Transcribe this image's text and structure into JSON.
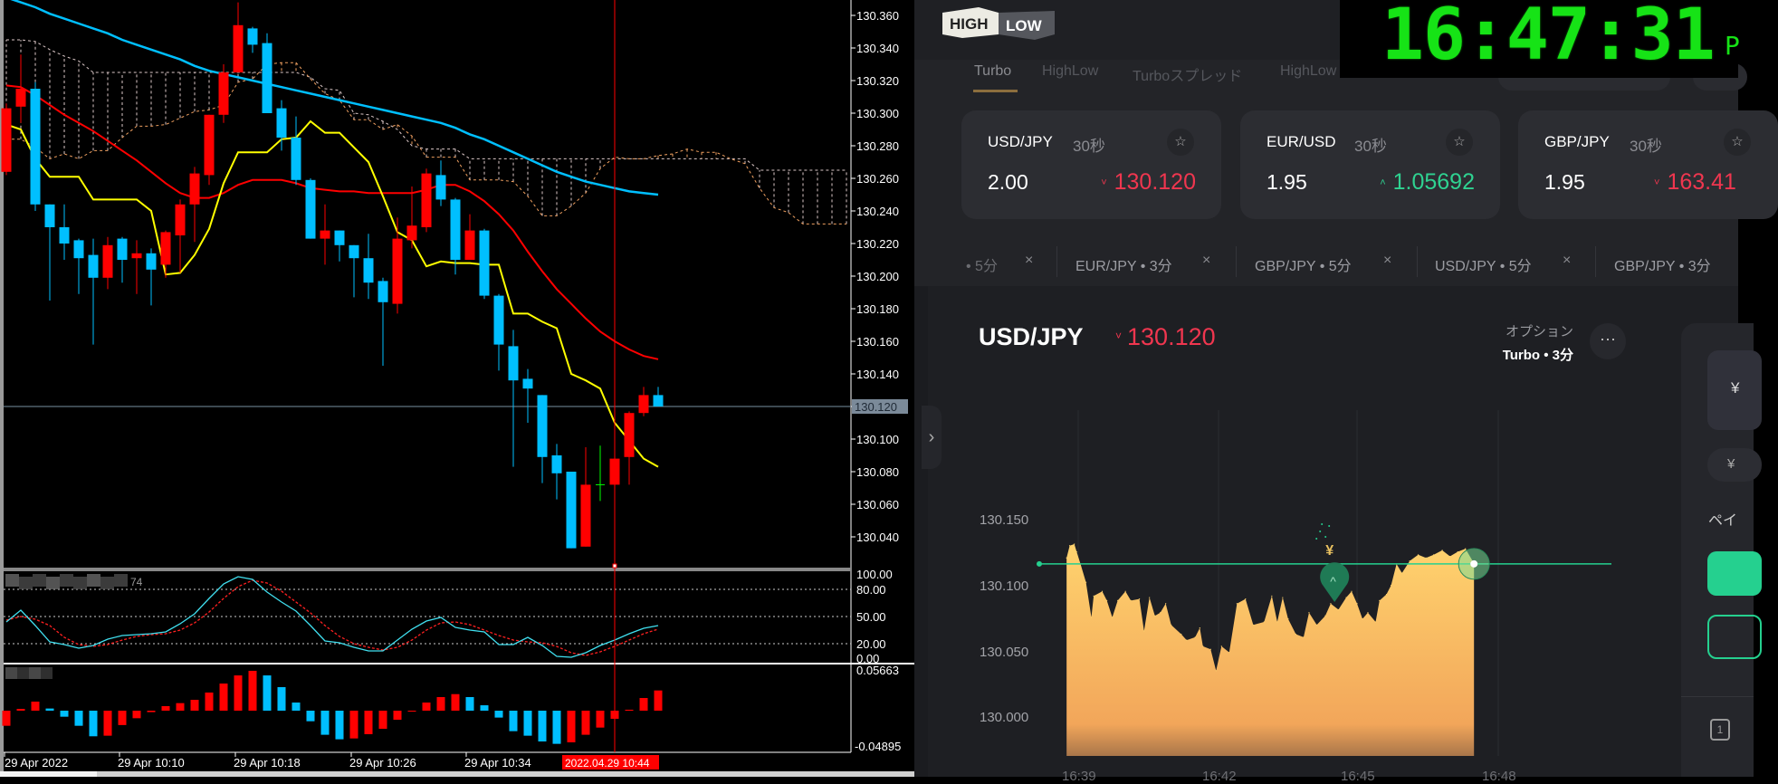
{
  "mt4": {
    "price_axis_labels": [
      "130.360",
      "130.340",
      "130.320",
      "130.300",
      "130.280",
      "130.260",
      "130.240",
      "130.220",
      "130.200",
      "130.180",
      "130.160",
      "130.140",
      "130.120",
      "130.100",
      "130.080",
      "130.060",
      "130.040"
    ],
    "current_price_label": "130.120",
    "stoch_label_fragment": "74",
    "stoch_axis_labels": [
      "100.00",
      "80.00",
      "50.00",
      "20.00",
      "0.00"
    ],
    "hist_axis_labels": [
      "0.05663",
      "-0.04895"
    ],
    "time_labels": [
      "29 Apr 2022",
      "29 Apr 10:10",
      "29 Apr 10:18",
      "29 Apr 10:26",
      "29 Apr 10:34"
    ],
    "cursor_time_label": "2022.04.29 10:44",
    "colors": {
      "bull": "#ff0000",
      "bear": "#00bfff",
      "doji": "#00ff00",
      "ma_long": "#00bfff",
      "ma_mid": "#ff0000",
      "ma_fast": "#ffff00",
      "span_b": "#dcc8c8",
      "span_a": "#f0a060",
      "cursor": "#ff0000"
    }
  },
  "chart_data": [
    {
      "type": "candlestick",
      "ylim": [
        130.02,
        130.375
      ],
      "current_price": 130.12,
      "cursor_time": "10:44",
      "columns": [
        "time",
        "open",
        "high",
        "low",
        "close"
      ],
      "candles": [
        [
          "10:02",
          130.264,
          130.306,
          130.262,
          130.303
        ],
        [
          "10:03",
          130.304,
          130.336,
          130.294,
          130.315
        ],
        [
          "10:04",
          130.315,
          130.319,
          130.24,
          130.244
        ],
        [
          "10:05",
          130.244,
          130.244,
          130.185,
          130.23
        ],
        [
          "10:06",
          130.23,
          130.244,
          130.21,
          130.22
        ],
        [
          "10:07",
          130.222,
          130.223,
          130.189,
          130.211
        ],
        [
          "10:08",
          130.213,
          130.223,
          130.158,
          130.199
        ],
        [
          "10:09",
          130.199,
          130.224,
          130.192,
          130.219
        ],
        [
          "10:10",
          130.223,
          130.224,
          130.196,
          130.21
        ],
        [
          "10:11",
          130.211,
          130.222,
          130.189,
          130.214
        ],
        [
          "10:12",
          130.214,
          130.217,
          130.182,
          130.204
        ],
        [
          "10:13",
          130.207,
          130.228,
          130.199,
          130.227
        ],
        [
          "10:14",
          130.225,
          130.247,
          130.202,
          130.244
        ],
        [
          "10:15",
          130.244,
          130.267,
          130.221,
          130.263
        ],
        [
          "10:16",
          130.262,
          130.299,
          130.256,
          130.299
        ],
        [
          "10:17",
          130.299,
          130.33,
          130.294,
          130.325
        ],
        [
          "10:18",
          130.325,
          130.368,
          130.325,
          130.354
        ],
        [
          "10:19",
          130.352,
          130.353,
          130.337,
          130.342
        ],
        [
          "10:20",
          130.343,
          130.349,
          130.3,
          130.3
        ],
        [
          "10:21",
          130.303,
          130.308,
          130.277,
          130.285
        ],
        [
          "10:22",
          130.285,
          130.298,
          130.256,
          130.259
        ],
        [
          "10:23",
          130.259,
          130.26,
          130.223,
          130.223
        ],
        [
          "10:24",
          130.223,
          130.244,
          130.207,
          130.228
        ],
        [
          "10:25",
          130.228,
          130.228,
          130.209,
          130.219
        ],
        [
          "10:26",
          130.219,
          130.219,
          130.187,
          130.211
        ],
        [
          "10:27",
          130.211,
          130.226,
          130.186,
          130.196
        ],
        [
          "10:28",
          130.197,
          130.199,
          130.145,
          130.184
        ],
        [
          "10:29",
          130.183,
          130.236,
          130.177,
          130.223
        ],
        [
          "10:30",
          130.222,
          130.255,
          130.217,
          130.231
        ],
        [
          "10:31",
          130.23,
          130.266,
          130.227,
          130.263
        ],
        [
          "10:32",
          130.262,
          130.271,
          130.243,
          130.247
        ],
        [
          "10:33",
          130.247,
          130.248,
          130.201,
          130.21
        ],
        [
          "10:34",
          130.21,
          130.238,
          130.21,
          130.228
        ],
        [
          "10:35",
          130.228,
          130.229,
          130.186,
          130.188
        ],
        [
          "10:36",
          130.188,
          130.189,
          130.142,
          130.158
        ],
        [
          "10:37",
          130.157,
          130.167,
          130.083,
          130.136
        ],
        [
          "10:38",
          130.137,
          130.143,
          130.11,
          130.131
        ],
        [
          "10:39",
          130.127,
          130.127,
          130.073,
          130.089
        ],
        [
          "10:40",
          130.09,
          130.097,
          130.063,
          130.079
        ],
        [
          "10:41",
          130.08,
          130.08,
          130.033,
          130.033
        ],
        [
          "10:42",
          130.034,
          130.095,
          130.034,
          130.072
        ],
        [
          "10:43",
          130.072,
          130.096,
          130.062,
          130.072
        ],
        [
          "10:44",
          130.072,
          130.088,
          130.072,
          130.088
        ],
        [
          "10:45",
          130.089,
          130.117,
          130.072,
          130.116
        ],
        [
          "10:46",
          130.116,
          130.132,
          130.114,
          130.127
        ],
        [
          "10:47",
          130.127,
          130.132,
          130.12,
          130.12
        ]
      ],
      "ma_long": [
        130.371,
        130.368,
        130.365,
        130.361,
        130.358,
        130.355,
        130.352,
        130.349,
        130.345,
        130.342,
        130.339,
        130.336,
        130.333,
        130.329,
        130.326,
        130.324,
        130.322,
        130.32,
        130.318,
        130.316,
        130.314,
        130.312,
        130.31,
        130.308,
        130.306,
        130.304,
        130.302,
        130.3,
        130.298,
        130.296,
        130.294,
        130.291,
        130.287,
        130.284,
        130.28,
        130.276,
        130.272,
        130.268,
        130.264,
        130.261,
        130.258,
        130.256,
        130.254,
        130.252,
        130.251,
        130.25
      ],
      "ma_mid": [
        130.317,
        130.316,
        130.311,
        130.305,
        130.299,
        130.294,
        130.289,
        130.283,
        130.277,
        130.271,
        130.264,
        130.257,
        130.251,
        130.248,
        130.248,
        130.251,
        130.256,
        130.259,
        130.259,
        130.259,
        130.257,
        130.254,
        130.253,
        130.252,
        130.252,
        130.251,
        130.251,
        130.251,
        130.251,
        130.253,
        130.256,
        130.256,
        130.252,
        130.246,
        130.238,
        130.228,
        130.215,
        130.203,
        130.192,
        130.183,
        130.174,
        130.166,
        130.16,
        130.155,
        130.151,
        130.149
      ],
      "ma_fast": [
        130.293,
        130.29,
        130.272,
        130.261,
        130.261,
        130.261,
        130.247,
        130.247,
        130.247,
        130.247,
        130.24,
        130.201,
        130.202,
        130.213,
        130.229,
        130.257,
        130.276,
        130.276,
        130.276,
        130.284,
        130.285,
        130.295,
        130.288,
        130.288,
        130.279,
        130.27,
        130.249,
        130.227,
        130.222,
        130.206,
        130.209,
        130.208,
        130.208,
        130.207,
        130.207,
        130.177,
        130.177,
        130.172,
        130.168,
        130.14,
        130.136,
        130.131,
        130.11,
        130.099,
        130.088,
        130.083
      ],
      "cloud_span_a": [
        130.284,
        130.284,
        130.279,
        130.272,
        130.275,
        130.272,
        130.277,
        130.277,
        130.285,
        130.292,
        130.292,
        130.293,
        130.297,
        130.301,
        130.302,
        130.305,
        130.319,
        130.321,
        130.33,
        130.331,
        130.331,
        130.321,
        130.312,
        130.308,
        130.296,
        130.296,
        130.29,
        130.293,
        130.286,
        130.273,
        130.273,
        130.273,
        130.259,
        130.259,
        130.259,
        130.258,
        130.249,
        130.237,
        130.237,
        130.243,
        130.251,
        130.266,
        130.273,
        130.272,
        130.272,
        130.274,
        130.275,
        130.278,
        130.276,
        130.276,
        130.272,
        130.269,
        130.254,
        130.242,
        130.239,
        130.232,
        130.232,
        130.232,
        130.232
      ],
      "cloud_span_b": [
        130.345,
        130.345,
        130.344,
        130.339,
        130.335,
        130.332,
        130.325,
        130.325,
        130.325,
        130.325,
        130.325,
        130.325,
        130.325,
        130.325,
        130.325,
        130.325,
        130.325,
        130.325,
        130.325,
        130.325,
        130.325,
        130.322,
        130.315,
        130.314,
        130.3,
        130.299,
        130.295,
        130.29,
        130.28,
        130.278,
        130.278,
        130.278,
        130.272,
        130.272,
        130.272,
        130.272,
        130.272,
        130.272,
        130.272,
        130.272,
        130.272,
        130.272,
        130.272,
        130.272,
        130.272,
        130.272,
        130.272,
        130.272,
        130.272,
        130.272,
        130.272,
        130.272,
        130.265,
        130.265,
        130.265,
        130.265,
        130.265,
        130.265,
        130.265
      ]
    },
    {
      "type": "line",
      "ylim": [
        0,
        100
      ],
      "levels": [
        80,
        50,
        20
      ],
      "main": [
        44,
        57,
        40,
        22,
        19,
        15,
        18,
        25,
        29,
        30,
        31,
        33,
        42,
        53,
        70,
        86,
        94,
        91,
        77,
        66,
        56,
        40,
        23,
        21,
        16,
        12,
        12,
        24,
        36,
        45,
        49,
        38,
        35,
        33,
        19,
        19,
        27,
        18,
        6,
        5,
        10,
        18,
        24,
        31,
        37,
        40
      ],
      "signal": [
        46,
        50,
        47,
        40,
        27,
        19,
        17,
        19,
        24,
        28,
        30,
        31,
        35,
        43,
        55,
        70,
        83,
        90,
        87,
        78,
        66,
        54,
        40,
        28,
        20,
        16,
        13,
        16,
        24,
        35,
        43,
        44,
        41,
        35,
        29,
        24,
        22,
        21,
        17,
        10,
        7,
        11,
        17,
        24,
        31,
        36
      ]
    },
    {
      "type": "bar",
      "ylim": [
        -0.04895,
        0.05663
      ],
      "values": [
        -0.021,
        0.0025,
        0.0126,
        0.003,
        -0.0084,
        -0.021,
        -0.0356,
        -0.0348,
        -0.02,
        -0.0105,
        -0.002,
        0.0063,
        0.0105,
        0.0151,
        0.0252,
        0.0377,
        0.049,
        0.0554,
        0.049,
        0.0327,
        0.0113,
        -0.0147,
        -0.0335,
        -0.0398,
        -0.0386,
        -0.0327,
        -0.0252,
        -0.0126,
        -0.001,
        0.0113,
        0.0189,
        0.023,
        0.0189,
        0.0075,
        -0.0096,
        -0.0285,
        -0.0348,
        -0.0428,
        -0.0461,
        -0.044,
        -0.0335,
        -0.0235,
        -0.0113,
        0.0013,
        0.0176,
        0.0281
      ]
    },
    {
      "type": "area",
      "ylim": [
        129.98,
        130.17
      ],
      "y_ticks": [
        "130.150",
        "130.100",
        "130.050",
        "130.000"
      ],
      "x_ticks": [
        "16:39",
        "16:42",
        "16:45",
        "16:48"
      ],
      "strike": 130.118,
      "entry_marker": {
        "time": "16:44:31",
        "price": 130.089,
        "direction": "up"
      },
      "points": [
        [
          "16:38:45",
          130.1225
        ],
        [
          "16:38:49",
          130.1318
        ],
        [
          "16:38:55",
          130.133
        ],
        [
          "16:38:58",
          130.1272
        ],
        [
          "16:39:03",
          130.1179
        ],
        [
          "16:39:10",
          130.104
        ],
        [
          "16:39:17",
          130.0774
        ],
        [
          "16:39:20",
          130.0936
        ],
        [
          "16:39:31",
          130.0971
        ],
        [
          "16:39:37",
          130.0901
        ],
        [
          "16:39:44",
          130.0774
        ],
        [
          "16:39:51",
          130.0901
        ],
        [
          "16:40:01",
          130.0971
        ],
        [
          "16:40:08",
          130.0901
        ],
        [
          "16:40:19",
          130.0913
        ],
        [
          "16:40:25",
          130.067
        ],
        [
          "16:40:32",
          130.0924
        ],
        [
          "16:40:39",
          130.0785
        ],
        [
          "16:40:46",
          130.0809
        ],
        [
          "16:40:53",
          130.0878
        ],
        [
          "16:41:00",
          130.0716
        ],
        [
          "16:41:13",
          130.0646
        ],
        [
          "16:41:20",
          130.06
        ],
        [
          "16:41:31",
          130.0623
        ],
        [
          "16:41:37",
          130.0693
        ],
        [
          "16:41:41",
          130.0554
        ],
        [
          "16:41:51",
          130.0531
        ],
        [
          "16:41:58",
          130.0368
        ],
        [
          "16:42:05",
          130.0554
        ],
        [
          "16:42:15",
          130.0507
        ],
        [
          "16:42:25",
          130.0878
        ],
        [
          "16:42:36",
          130.0913
        ],
        [
          "16:42:46",
          130.0716
        ],
        [
          "16:43:00",
          130.0739
        ],
        [
          "16:43:10",
          130.0936
        ],
        [
          "16:43:17",
          130.0739
        ],
        [
          "16:43:24",
          130.0924
        ],
        [
          "16:43:31",
          130.0762
        ],
        [
          "16:43:41",
          130.0646
        ],
        [
          "16:43:51",
          130.0623
        ],
        [
          "16:43:58",
          130.0809
        ],
        [
          "16:44:08",
          130.0716
        ],
        [
          "16:44:19",
          130.0785
        ],
        [
          "16:44:26",
          130.0878
        ],
        [
          "16:44:36",
          130.0832
        ],
        [
          "16:44:46",
          130.0924
        ],
        [
          "16:44:53",
          130.0971
        ],
        [
          "16:45:00",
          130.0878
        ],
        [
          "16:45:07",
          130.0762
        ],
        [
          "16:45:14",
          130.0809
        ],
        [
          "16:45:24",
          130.0739
        ],
        [
          "16:45:29",
          130.0901
        ],
        [
          "16:45:38",
          130.0948
        ],
        [
          "16:45:44",
          130.1017
        ],
        [
          "16:45:51",
          130.1179
        ],
        [
          "16:45:58",
          130.111
        ],
        [
          "16:46:08",
          130.1202
        ],
        [
          "16:46:19",
          130.1249
        ],
        [
          "16:46:29",
          130.1225
        ],
        [
          "16:46:39",
          130.1249
        ],
        [
          "16:46:50",
          130.1283
        ],
        [
          "16:47:00",
          130.1237
        ],
        [
          "16:47:10",
          130.1272
        ],
        [
          "16:47:20",
          130.1295
        ],
        [
          "16:47:31",
          130.1184
        ]
      ]
    }
  ],
  "highlow": {
    "logo": {
      "top": "HIGH",
      "bottom": "LOW"
    },
    "clock": {
      "time": "16:47:31",
      "ampm": "P"
    },
    "tabs": [
      "Turbo",
      "HighLow",
      "Turboスプレッド",
      "HighLow"
    ],
    "cards": [
      {
        "pair": "USD/JPY",
        "duration": "30秒",
        "payout": "2.00",
        "price": "130.120",
        "dir": "down",
        "chevron": "˅"
      },
      {
        "pair": "EUR/USD",
        "duration": "30秒",
        "payout": "1.95",
        "price": "1.05692",
        "dir": "up",
        "chevron": "˄"
      },
      {
        "pair": "GBP/JPY",
        "duration": "30秒",
        "payout": "1.95",
        "price": "163.41",
        "dir": "down",
        "chevron": "˅"
      }
    ],
    "star_icon": "☆",
    "recent": [
      "• 5分",
      "EUR/JPY • 3分",
      "GBP/JPY • 5分",
      "USD/JPY • 5分",
      "GBP/JPY • 3分"
    ],
    "close_glyph": "×",
    "asset": {
      "pair": "USD/JPY",
      "price": "130.120",
      "chevron": "˅",
      "option_label": "オプション",
      "option_value": "Turbo • 3分",
      "more": "···"
    },
    "collapse_glyph": "›",
    "side": {
      "yen": "¥",
      "payout_label": "ペイ",
      "icon_digit": "1"
    },
    "marker_glyph": "^",
    "bonus_glyph": "¥",
    "colors": {
      "down": "#f0364f",
      "up": "#2fd291",
      "accent": "#25d08f",
      "area_top": "#ffd36e",
      "area_bottom": "#f2a65a"
    }
  }
}
